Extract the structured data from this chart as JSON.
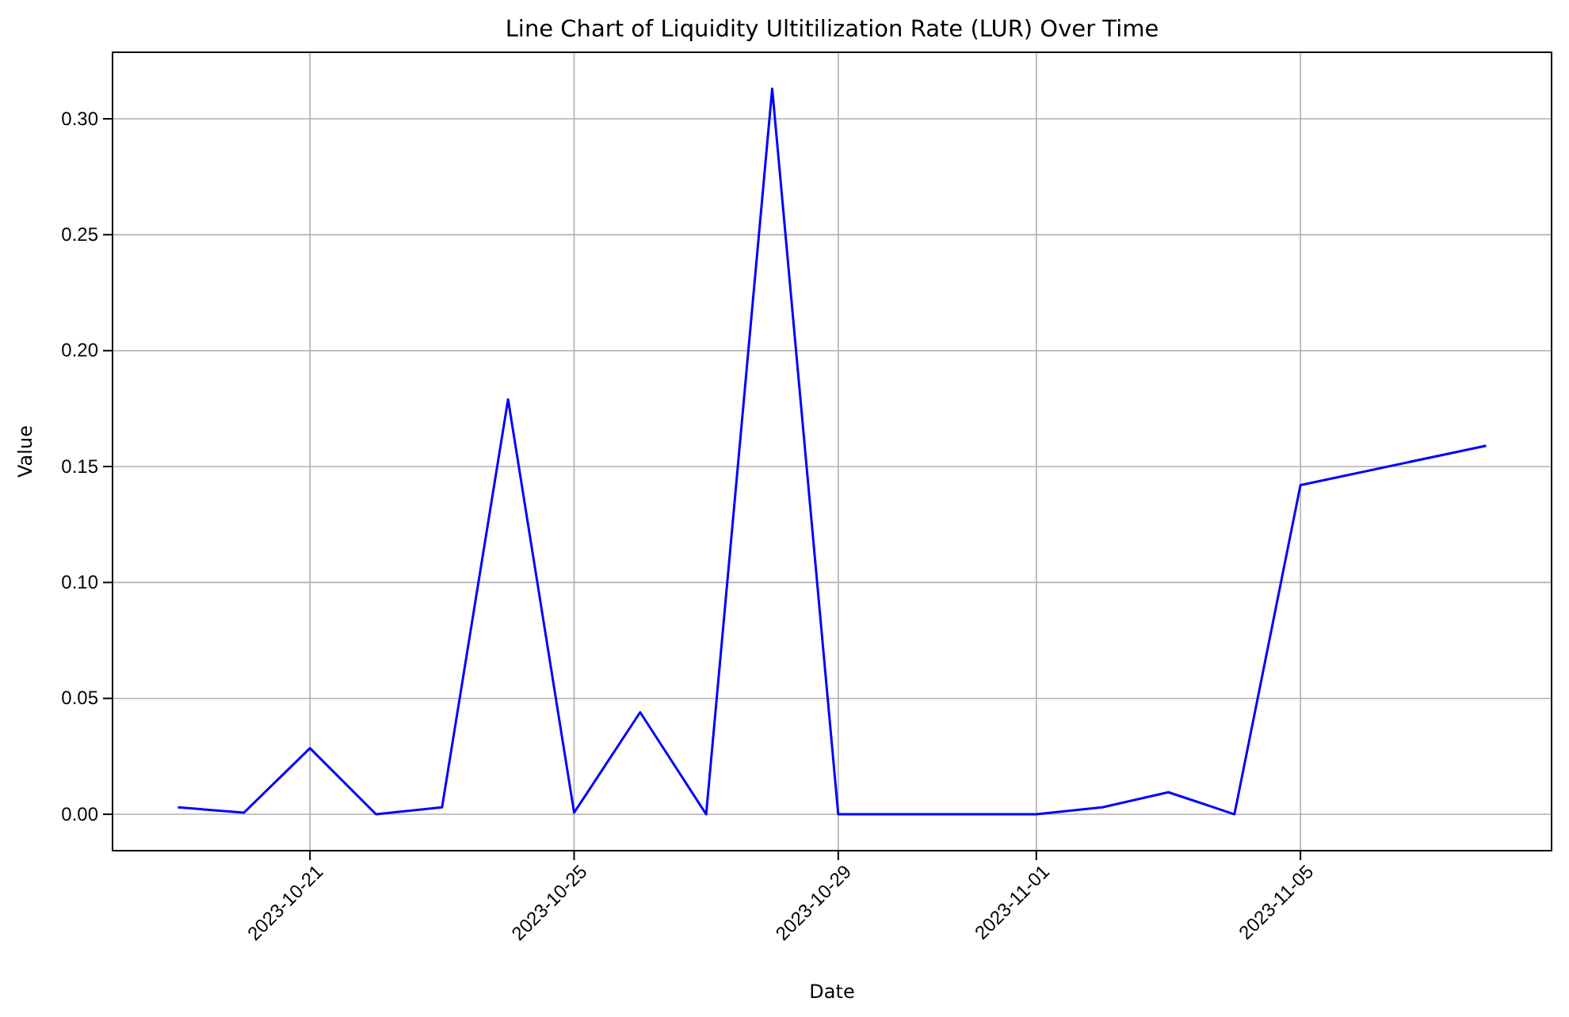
{
  "chart_data": {
    "type": "line",
    "title": "Line Chart of Liquidity Ultitilization Rate (LUR) Over Time",
    "xlabel": "Date",
    "ylabel": "Value",
    "x": [
      "2023-10-19",
      "2023-10-20",
      "2023-10-21",
      "2023-10-22",
      "2023-10-23",
      "2023-10-24",
      "2023-10-25",
      "2023-10-26",
      "2023-10-27",
      "2023-10-28",
      "2023-10-29",
      "2023-11-01",
      "2023-11-02",
      "2023-11-03",
      "2023-11-04",
      "2023-11-05",
      "2023-11-07T19:30"
    ],
    "series": [
      {
        "color": "#0000ff",
        "values": [
          0.003,
          0.0007,
          0.0285,
          0.0,
          0.003,
          0.179,
          0.0007,
          0.044,
          0.0,
          0.313,
          0.0,
          0.0,
          0.003,
          0.0095,
          0.0,
          0.142,
          0.159
        ]
      }
    ],
    "xlim": [
      "2023-10-18T00:14",
      "2023-11-08T19:16"
    ],
    "xticks": [
      "2023-10-21",
      "2023-10-25",
      "2023-10-29",
      "2023-11-01",
      "2023-11-05"
    ],
    "ylim": [
      -0.0157,
      0.3287
    ],
    "yticks": [
      {
        "value": 0,
        "label": "0.00"
      },
      {
        "value": 0.05,
        "label": "0.05"
      },
      {
        "value": 0.1,
        "label": "0.10"
      },
      {
        "value": 0.15,
        "label": "0.15"
      },
      {
        "value": 0.2,
        "label": "0.20"
      },
      {
        "value": 0.25,
        "label": "0.25"
      },
      {
        "value": 0.3,
        "label": "0.30"
      }
    ],
    "grid": true,
    "line_style": "solid"
  }
}
